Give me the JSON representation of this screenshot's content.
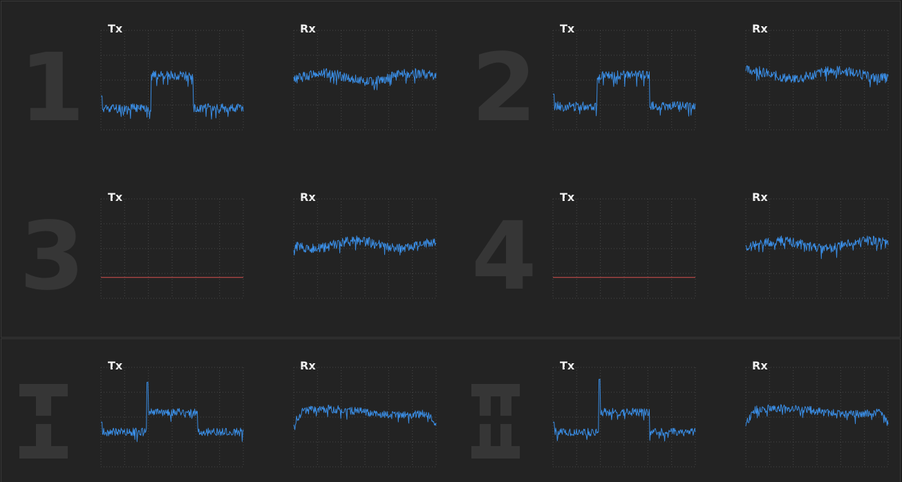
{
  "colors": {
    "background": "#232323",
    "grid": "#4a4a4a",
    "signal_active": "#3a8ee6",
    "signal_inactive": "#d9534f",
    "port_number": "#363636",
    "title": "#f2f2f2"
  },
  "ports": [
    {
      "id": "1",
      "label": "1",
      "tx_title": "Tx",
      "rx_title": "Rx"
    },
    {
      "id": "2",
      "label": "2",
      "tx_title": "Tx",
      "rx_title": "Rx"
    },
    {
      "id": "3",
      "label": "3",
      "tx_title": "Tx",
      "rx_title": "Rx"
    },
    {
      "id": "4",
      "label": "4",
      "tx_title": "Tx",
      "rx_title": "Rx"
    },
    {
      "id": "I",
      "label": "I",
      "tx_title": "Tx",
      "rx_title": "Rx"
    },
    {
      "id": "II",
      "label": "II",
      "tx_title": "Tx",
      "rx_title": "Rx"
    }
  ],
  "chart_data": [
    {
      "type": "line",
      "title": "Tx",
      "port": "1",
      "shape": "pulse",
      "pulse": [
        0.35,
        0.65
      ],
      "low": 0.22,
      "high": 0.55,
      "active": true,
      "seed": 11
    },
    {
      "type": "line",
      "title": "Rx",
      "port": "1",
      "shape": "wave",
      "level": 0.53,
      "active": true,
      "seed": 12
    },
    {
      "type": "line",
      "title": "Tx",
      "port": "2",
      "shape": "pulse",
      "pulse": [
        0.31,
        0.68
      ],
      "low": 0.24,
      "high": 0.55,
      "active": true,
      "seed": 13
    },
    {
      "type": "line",
      "title": "Rx",
      "port": "2",
      "shape": "wave",
      "level": 0.56,
      "active": true,
      "seed": 14
    },
    {
      "type": "line",
      "title": "Tx",
      "port": "3",
      "shape": "flat",
      "level": 0.21,
      "active": false,
      "seed": 15
    },
    {
      "type": "line",
      "title": "Rx",
      "port": "3",
      "shape": "wave",
      "level": 0.54,
      "active": true,
      "seed": 16
    },
    {
      "type": "line",
      "title": "Tx",
      "port": "4",
      "shape": "flat",
      "level": 0.21,
      "active": false,
      "seed": 17
    },
    {
      "type": "line",
      "title": "Rx",
      "port": "4",
      "shape": "wave",
      "level": 0.54,
      "active": true,
      "seed": 18
    },
    {
      "type": "line",
      "title": "Tx",
      "port": "I",
      "shape": "spike",
      "pulse": [
        0.32,
        0.68
      ],
      "low": 0.35,
      "high": 0.55,
      "spike": 0.85,
      "active": true,
      "seed": 19
    },
    {
      "type": "line",
      "title": "Rx",
      "port": "I",
      "shape": "arch",
      "level": 0.55,
      "active": true,
      "seed": 20
    },
    {
      "type": "line",
      "title": "Tx",
      "port": "II",
      "shape": "spike",
      "pulse": [
        0.32,
        0.68
      ],
      "low": 0.35,
      "high": 0.55,
      "spike": 0.88,
      "active": true,
      "seed": 21
    },
    {
      "type": "line",
      "title": "Rx",
      "port": "II",
      "shape": "arch",
      "level": 0.56,
      "active": true,
      "seed": 22
    }
  ]
}
